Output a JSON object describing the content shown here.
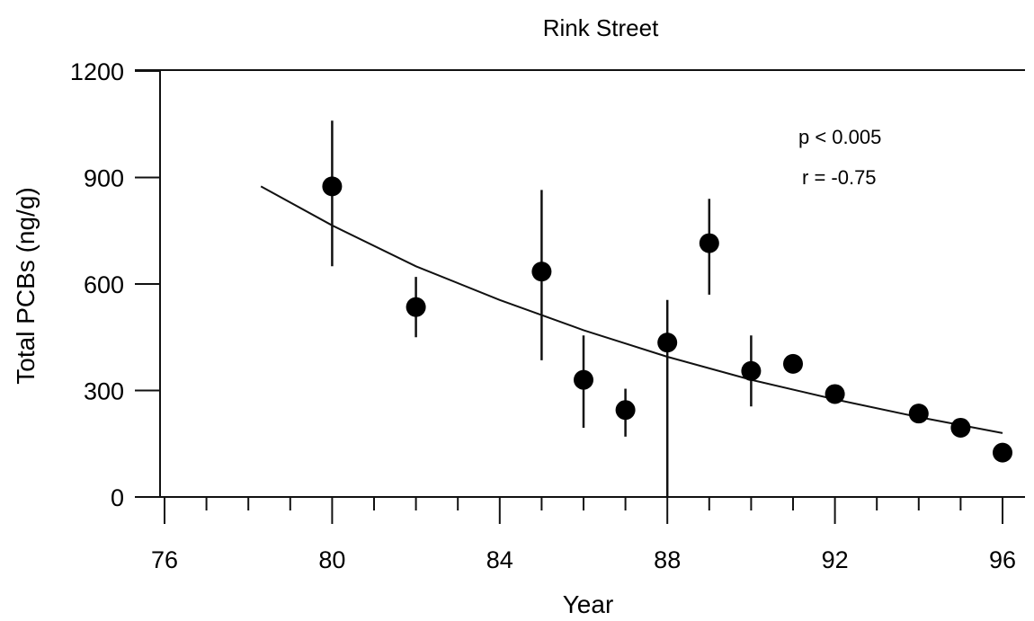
{
  "chart_data": {
    "type": "scatter",
    "title": "Rink Street",
    "xlabel": "Year",
    "ylabel": "Total PCBs (ng/g)",
    "xlim": [
      76,
      96
    ],
    "ylim": [
      0,
      1200
    ],
    "x_ticks": [
      76,
      80,
      84,
      88,
      92,
      96
    ],
    "x_minor_ticks": [
      77,
      78,
      79,
      81,
      82,
      83,
      85,
      86,
      87,
      89,
      90,
      91,
      93,
      94,
      95
    ],
    "y_ticks": [
      0,
      300,
      600,
      900,
      1200
    ],
    "grid": false,
    "annotations": [
      "p < 0.005",
      "r = -0.75"
    ],
    "series": [
      {
        "points": [
          {
            "x": 80,
            "y": 875,
            "err_low": 650,
            "err_high": 1060
          },
          {
            "x": 82,
            "y": 535,
            "err_low": 450,
            "err_high": 620
          },
          {
            "x": 85,
            "y": 635,
            "err_low": 385,
            "err_high": 865
          },
          {
            "x": 86,
            "y": 330,
            "err_low": 195,
            "err_high": 455
          },
          {
            "x": 87,
            "y": 245,
            "err_low": 170,
            "err_high": 305
          },
          {
            "x": 88,
            "y": 435,
            "err_low": 0,
            "err_high": 555
          },
          {
            "x": 89,
            "y": 715,
            "err_low": 570,
            "err_high": 840
          },
          {
            "x": 90,
            "y": 355,
            "err_low": 255,
            "err_high": 455
          },
          {
            "x": 91,
            "y": 375
          },
          {
            "x": 92,
            "y": 290
          },
          {
            "x": 94,
            "y": 235
          },
          {
            "x": 95,
            "y": 195
          },
          {
            "x": 96,
            "y": 125
          }
        ]
      }
    ],
    "fit_curve": {
      "type": "exponential",
      "x": [
        78.3,
        80,
        82,
        84,
        86,
        88,
        90,
        92,
        94,
        96
      ],
      "y": [
        875,
        765,
        650,
        555,
        470,
        395,
        330,
        275,
        225,
        180
      ]
    }
  }
}
